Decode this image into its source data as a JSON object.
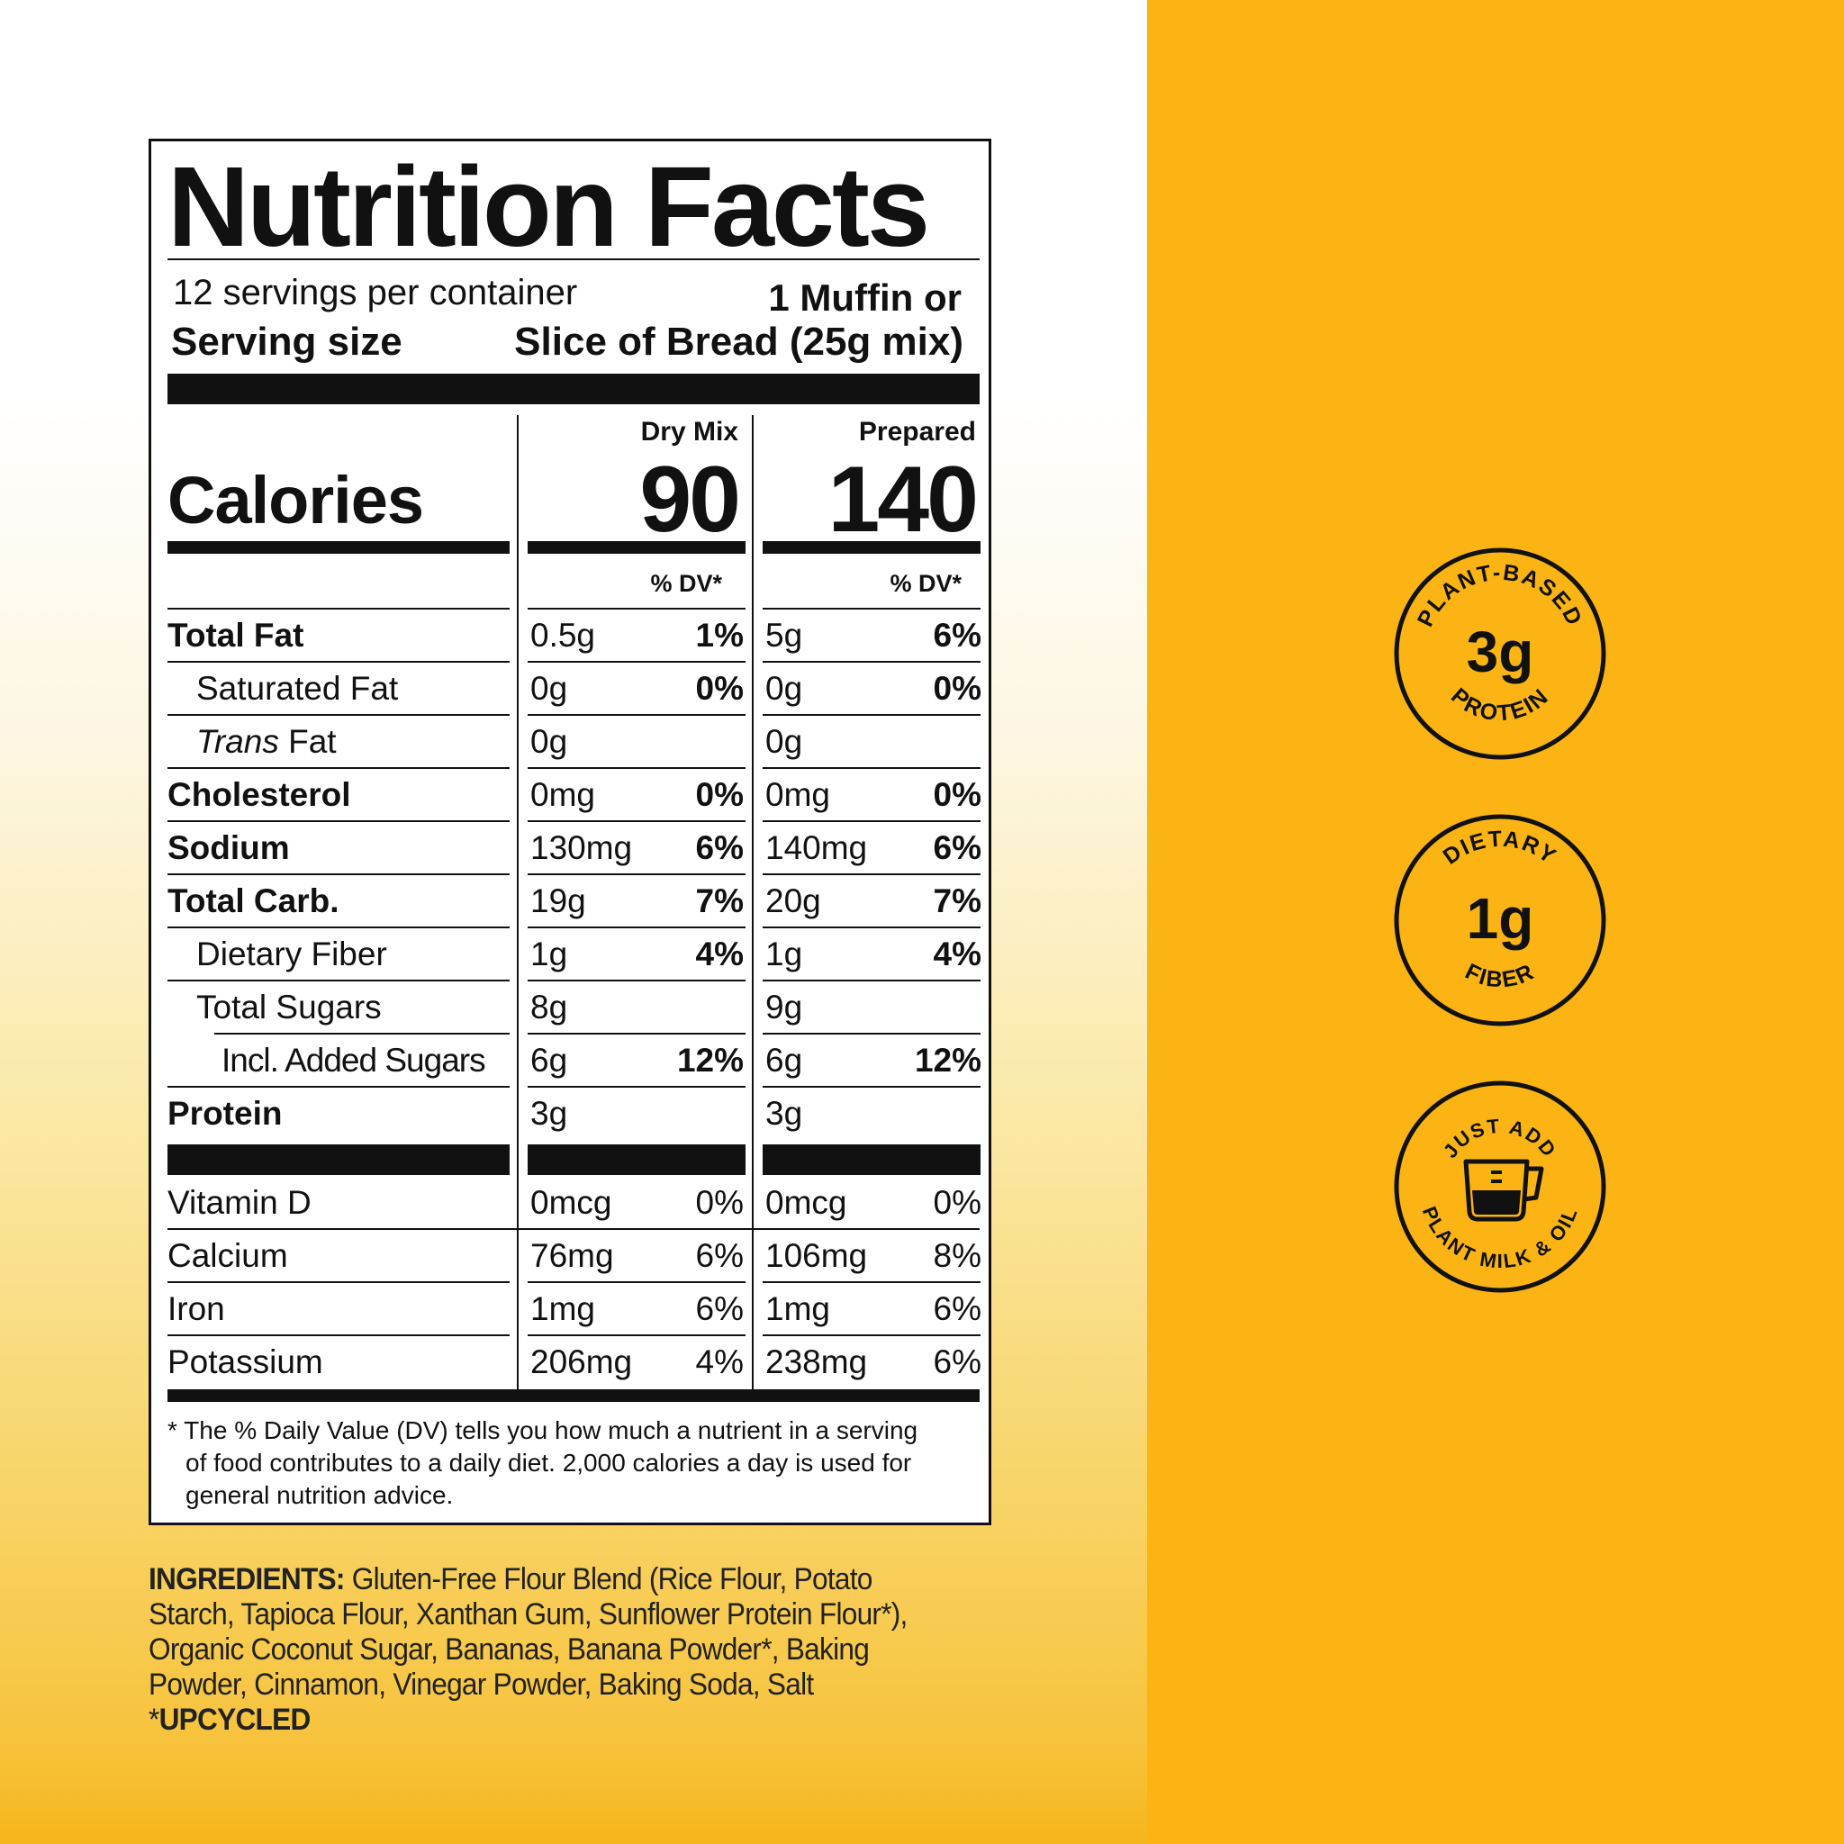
{
  "label": {
    "title": "Nutrition Facts",
    "servings_per_container": "12 servings per container",
    "serving_size_label": "Serving size",
    "serving_size_line1": "1 Muffin or",
    "serving_size_line2": "Slice of Bread (25g mix)",
    "col1_header": "Dry Mix",
    "col2_header": "Prepared",
    "calories_label": "Calories",
    "calories_dry": "90",
    "calories_prepared": "140",
    "dv_header": "% DV*",
    "rows": [
      {
        "name": "Total Fat",
        "dry": "0.5g",
        "dry_dv": "1%",
        "prep": "5g",
        "prep_dv": "6%"
      },
      {
        "name": "Saturated Fat",
        "dry": "0g",
        "dry_dv": "0%",
        "prep": "0g",
        "prep_dv": "0%"
      },
      {
        "name_italic": "Trans",
        "name": " Fat",
        "dry": "0g",
        "dry_dv": "",
        "prep": "0g",
        "prep_dv": ""
      },
      {
        "name": "Cholesterol",
        "dry": "0mg",
        "dry_dv": "0%",
        "prep": "0mg",
        "prep_dv": "0%"
      },
      {
        "name": "Sodium",
        "dry": "130mg",
        "dry_dv": "6%",
        "prep": "140mg",
        "prep_dv": "6%"
      },
      {
        "name": "Total Carb.",
        "dry": "19g",
        "dry_dv": "7%",
        "prep": "20g",
        "prep_dv": "7%"
      },
      {
        "name": "Dietary Fiber",
        "dry": "1g",
        "dry_dv": "4%",
        "prep": "1g",
        "prep_dv": "4%"
      },
      {
        "name": "Total Sugars",
        "dry": "8g",
        "dry_dv": "",
        "prep": "9g",
        "prep_dv": ""
      },
      {
        "name": "Incl. Added Sugars",
        "dry": "6g",
        "dry_dv": "12%",
        "prep": "6g",
        "prep_dv": "12%"
      },
      {
        "name": "Protein",
        "dry": "3g",
        "dry_dv": "",
        "prep": "3g",
        "prep_dv": ""
      }
    ],
    "vitamins": [
      {
        "name": "Vitamin D",
        "dry": "0mcg",
        "dry_dv": "0%",
        "prep": "0mcg",
        "prep_dv": "0%"
      },
      {
        "name": "Calcium",
        "dry": "76mg",
        "dry_dv": "6%",
        "prep": "106mg",
        "prep_dv": "8%"
      },
      {
        "name": "Iron",
        "dry": "1mg",
        "dry_dv": "6%",
        "prep": "1mg",
        "prep_dv": "6%"
      },
      {
        "name": "Potassium",
        "dry": "206mg",
        "dry_dv": "4%",
        "prep": "238mg",
        "prep_dv": "6%"
      }
    ],
    "footnote_line1": "* The % Daily Value (DV) tells you how much a nutrient in a serving",
    "footnote_line2": "of food contributes to a daily diet. 2,000 calories a day is used for",
    "footnote_line3": "general nutrition advice."
  },
  "ingredients": {
    "heading": "INGREDIENTS:",
    "text": "Gluten-Free Flour Blend (Rice Flour, Potato Starch, Tapioca Flour, Xanthan Gum, Sunflower Protein Flour*), Organic Coconut Sugar, Bananas, Banana Powder*, Baking Powder, Cinnamon, Vinegar Powder, Baking Soda, Salt *",
    "upcycled": "UPCYCLED"
  },
  "badges": [
    {
      "top": "PLANT-BASED",
      "value": "3g",
      "bottom": "PROTEIN",
      "icon": "protein-badge"
    },
    {
      "top": "DIETARY",
      "value": "1g",
      "bottom": "FIBER",
      "icon": "fiber-badge"
    },
    {
      "top": "JUST ADD",
      "bottom": "PLANT MILK & OIL",
      "icon": "measuring-cup-icon"
    }
  ],
  "colors": {
    "brand_yellow": "#fbb414",
    "ink": "#111111"
  }
}
